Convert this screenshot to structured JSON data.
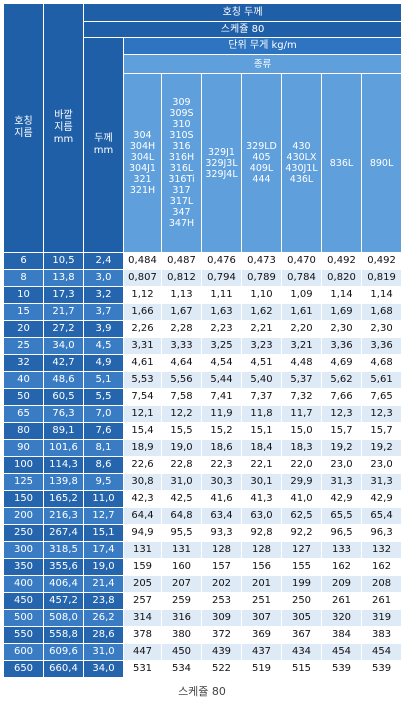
{
  "table": {
    "header": {
      "nominal_thickness": "호칭 두께",
      "schedule": "스케쥴 80",
      "unit_weight": "단위 무게 kg/m",
      "type": "종류",
      "columns": [
        "호칭\n지름",
        "바깥\n지름\nmm",
        "두께\nmm"
      ],
      "materials": [
        "304\n304H\n304L\n304J1\n321\n321H",
        "309\n309S\n310\n310S\n316\n316H\n316L\n316Ti\n317\n317L\n347\n347H",
        "329J1\n329J3L\n329J4L",
        "329LD\n405\n409L\n444",
        "430\n430LX\n430J1L\n436L",
        "836L",
        "890L"
      ]
    },
    "rows": [
      [
        "6",
        "10,5",
        "2,4",
        "0,484",
        "0,487",
        "0,476",
        "0,473",
        "0,470",
        "0,492",
        "0,492"
      ],
      [
        "8",
        "13,8",
        "3,0",
        "0,807",
        "0,812",
        "0,794",
        "0,789",
        "0,784",
        "0,820",
        "0,819"
      ],
      [
        "10",
        "17,3",
        "3,2",
        "1,12",
        "1,13",
        "1,11",
        "1,10",
        "1,09",
        "1,14",
        "1,14"
      ],
      [
        "15",
        "21,7",
        "3,7",
        "1,66",
        "1,67",
        "1,63",
        "1,62",
        "1,61",
        "1,69",
        "1,68"
      ],
      [
        "20",
        "27,2",
        "3,9",
        "2,26",
        "2,28",
        "2,23",
        "2,21",
        "2,20",
        "2,30",
        "2,30"
      ],
      [
        "25",
        "34,0",
        "4,5",
        "3,31",
        "3,33",
        "3,25",
        "3,23",
        "3,21",
        "3,36",
        "3,36"
      ],
      [
        "32",
        "42,7",
        "4,9",
        "4,61",
        "4,64",
        "4,54",
        "4,51",
        "4,48",
        "4,69",
        "4,68"
      ],
      [
        "40",
        "48,6",
        "5,1",
        "5,53",
        "5,56",
        "5,44",
        "5,40",
        "5,37",
        "5,62",
        "5,61"
      ],
      [
        "50",
        "60,5",
        "5,5",
        "7,54",
        "7,58",
        "7,41",
        "7,37",
        "7,32",
        "7,66",
        "7,65"
      ],
      [
        "65",
        "76,3",
        "7,0",
        "12,1",
        "12,2",
        "11,9",
        "11,8",
        "11,7",
        "12,3",
        "12,3"
      ],
      [
        "80",
        "89,1",
        "7,6",
        "15,4",
        "15,5",
        "15,2",
        "15,1",
        "15,0",
        "15,7",
        "15,7"
      ],
      [
        "90",
        "101,6",
        "8,1",
        "18,9",
        "19,0",
        "18,6",
        "18,4",
        "18,3",
        "19,2",
        "19,2"
      ],
      [
        "100",
        "114,3",
        "8,6",
        "22,6",
        "22,8",
        "22,3",
        "22,1",
        "22,0",
        "23,0",
        "23,0"
      ],
      [
        "125",
        "139,8",
        "9,5",
        "30,8",
        "31,0",
        "30,3",
        "30,1",
        "29,9",
        "31,3",
        "31,3"
      ],
      [
        "150",
        "165,2",
        "11,0",
        "42,3",
        "42,5",
        "41,6",
        "41,3",
        "41,0",
        "42,9",
        "42,9"
      ],
      [
        "200",
        "216,3",
        "12,7",
        "64,4",
        "64,8",
        "63,4",
        "63,0",
        "62,5",
        "65,5",
        "65,4"
      ],
      [
        "250",
        "267,4",
        "15,1",
        "94,9",
        "95,5",
        "93,3",
        "92,8",
        "92,2",
        "96,5",
        "96,3"
      ],
      [
        "300",
        "318,5",
        "17,4",
        "131",
        "131",
        "128",
        "128",
        "127",
        "133",
        "132"
      ],
      [
        "350",
        "355,6",
        "19,0",
        "159",
        "160",
        "157",
        "156",
        "155",
        "162",
        "162"
      ],
      [
        "400",
        "406,4",
        "21,4",
        "205",
        "207",
        "202",
        "201",
        "199",
        "209",
        "208"
      ],
      [
        "450",
        "457,2",
        "23,8",
        "257",
        "259",
        "253",
        "251",
        "250",
        "261",
        "261"
      ],
      [
        "500",
        "508,0",
        "26,2",
        "314",
        "316",
        "309",
        "307",
        "305",
        "320",
        "319"
      ],
      [
        "550",
        "558,8",
        "28,6",
        "378",
        "380",
        "372",
        "369",
        "367",
        "384",
        "383"
      ],
      [
        "600",
        "609,6",
        "31,0",
        "447",
        "450",
        "439",
        "437",
        "434",
        "454",
        "454"
      ],
      [
        "650",
        "660,4",
        "34,0",
        "531",
        "534",
        "522",
        "519",
        "515",
        "539",
        "539"
      ]
    ]
  },
  "caption": "스케쥴 80"
}
